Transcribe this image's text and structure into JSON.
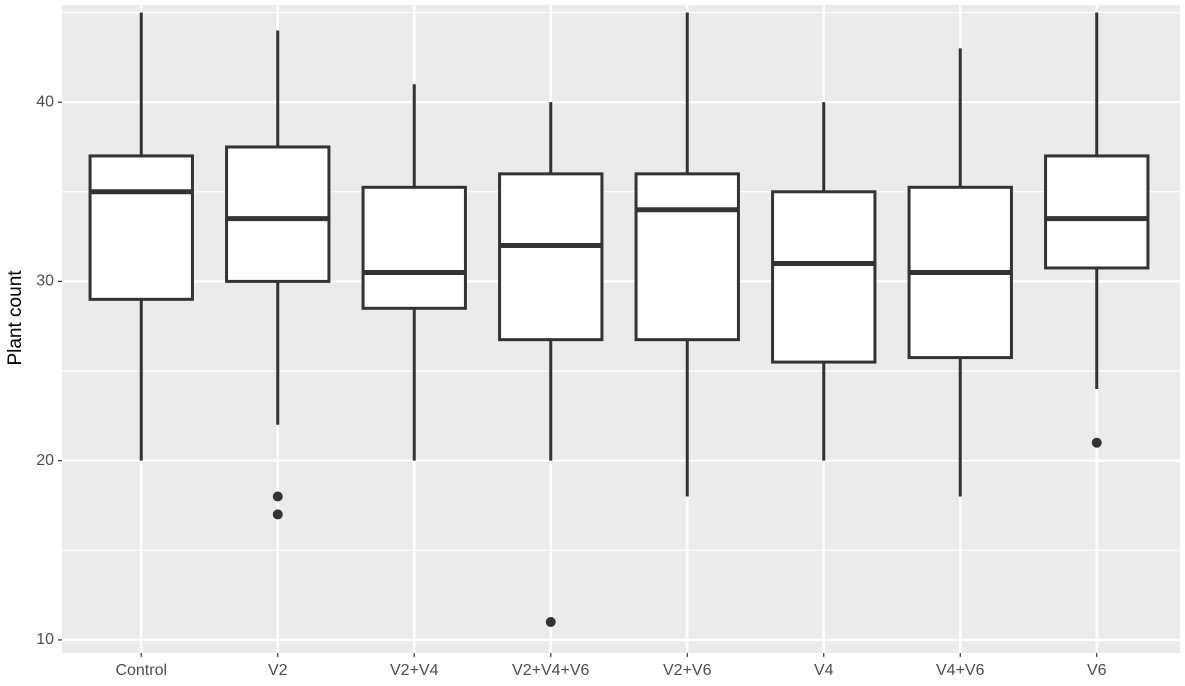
{
  "chart_data": {
    "type": "box",
    "y_label": "Plant count",
    "categories": [
      "Control",
      "V2",
      "V2+V4",
      "V2+V4+V6",
      "V2+V6",
      "V4",
      "V4+V6",
      "V6"
    ],
    "boxes": [
      {
        "whisker_low": 20,
        "q1": 29,
        "median": 35,
        "q3": 37,
        "whisker_high": 45,
        "outliers": []
      },
      {
        "whisker_low": 22,
        "q1": 30,
        "median": 33.5,
        "q3": 37.5,
        "whisker_high": 44,
        "outliers": [
          18,
          17
        ]
      },
      {
        "whisker_low": 20,
        "q1": 28.5,
        "median": 30.5,
        "q3": 35.25,
        "whisker_high": 41,
        "outliers": []
      },
      {
        "whisker_low": 20,
        "q1": 26.75,
        "median": 32,
        "q3": 36,
        "whisker_high": 40,
        "outliers": [
          11
        ]
      },
      {
        "whisker_low": 18,
        "q1": 26.75,
        "median": 34,
        "q3": 36,
        "whisker_high": 45,
        "outliers": []
      },
      {
        "whisker_low": 20,
        "q1": 25.5,
        "median": 31,
        "q3": 35,
        "whisker_high": 40,
        "outliers": []
      },
      {
        "whisker_low": 18,
        "q1": 25.75,
        "median": 30.5,
        "q3": 35.25,
        "whisker_high": 43,
        "outliers": []
      },
      {
        "whisker_low": 24,
        "q1": 30.75,
        "median": 33.5,
        "q3": 37,
        "whisker_high": 45,
        "outliers": [
          21
        ]
      }
    ],
    "color": "#333333",
    "ylim": [
      9.27,
      45.42
    ],
    "yticks": [
      10,
      20,
      30,
      40
    ],
    "y_minor_ticks": [
      15,
      25,
      35,
      45
    ],
    "grid": true
  }
}
